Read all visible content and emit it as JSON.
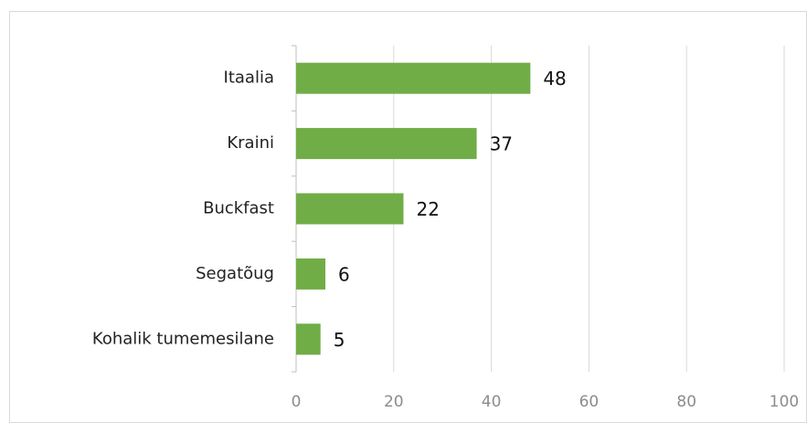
{
  "chart_data": {
    "type": "bar",
    "orientation": "horizontal",
    "categories": [
      "Itaalia",
      "Kraini",
      "Buckfast",
      "Segatõug",
      "Kohalik tumemesilane"
    ],
    "values": [
      48,
      37,
      22,
      6,
      5
    ],
    "color": "#70ad47",
    "xlim": [
      0,
      100
    ],
    "xticks": [
      0,
      20,
      40,
      60,
      80,
      100
    ],
    "grid": true
  }
}
